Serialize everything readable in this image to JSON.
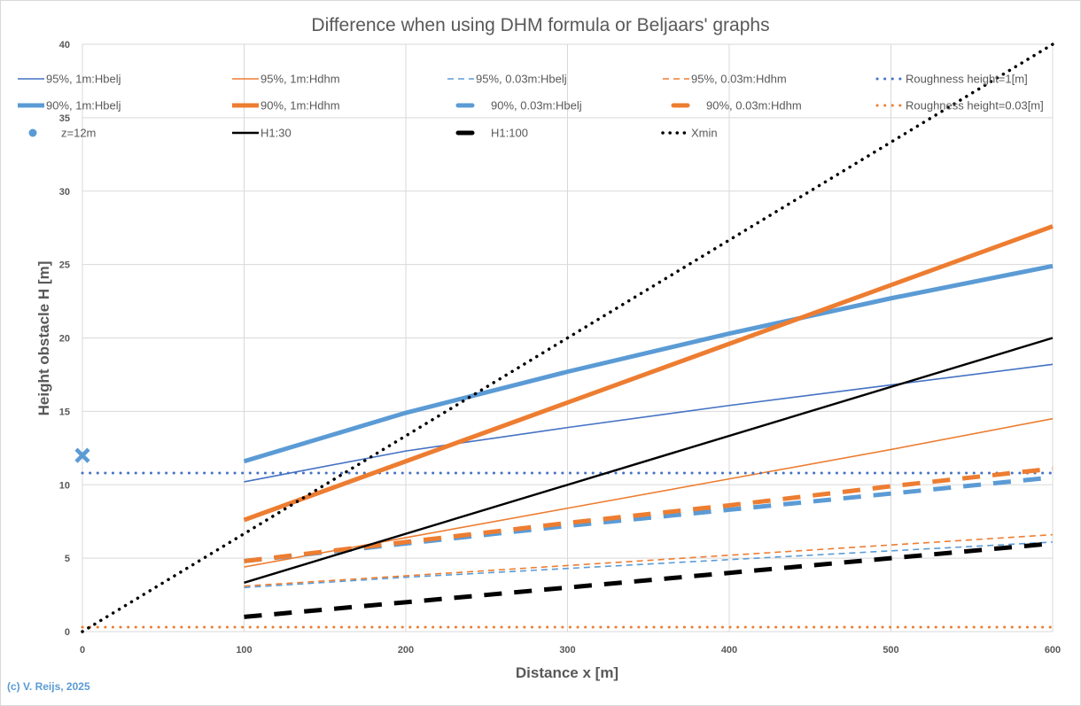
{
  "chart_data": {
    "type": "line",
    "title": "Difference when using DHM formula or Beljaars' graphs",
    "xlabel": "Distance  x [m]",
    "ylabel": "Height obstacle  H [m]",
    "xlim": [
      0,
      600
    ],
    "ylim": [
      0,
      40
    ],
    "x_ticks": [
      0,
      100,
      200,
      300,
      400,
      500,
      600
    ],
    "y_ticks": [
      0,
      5,
      10,
      15,
      20,
      25,
      30,
      35,
      40
    ],
    "grid": true,
    "legend_placement": "top",
    "copyright": "(c) V. Reijs, 2025",
    "series": [
      {
        "name": "95%, 1m:Hbelj",
        "color": "#4472c4",
        "style": "solid-thin",
        "x": [
          100,
          200,
          300,
          400,
          500,
          600
        ],
        "y": [
          10.2,
          12.3,
          13.9,
          15.4,
          16.8,
          18.2
        ]
      },
      {
        "name": "95%, 1m:Hdhm",
        "color": "#ed7d31",
        "style": "solid-thin",
        "x": [
          100,
          200,
          300,
          400,
          500,
          600
        ],
        "y": [
          4.4,
          6.4,
          8.4,
          10.4,
          12.4,
          14.5
        ]
      },
      {
        "name": "95%, 0.03m:Hbelj",
        "color": "#5b9bd5",
        "style": "dash-thin",
        "x": [
          100,
          200,
          300,
          400,
          500,
          600
        ],
        "y": [
          3.0,
          3.7,
          4.3,
          4.9,
          5.5,
          6.1
        ]
      },
      {
        "name": "95%, 0.03m:Hdhm",
        "color": "#ed7d31",
        "style": "dash-thin",
        "x": [
          100,
          200,
          300,
          400,
          500,
          600
        ],
        "y": [
          3.1,
          3.8,
          4.5,
          5.2,
          5.9,
          6.6
        ]
      },
      {
        "name": "Roughness height=1[m]",
        "color": "#4472c4",
        "style": "dot",
        "x": [
          0,
          600
        ],
        "y": [
          10.8,
          10.8
        ]
      },
      {
        "name": "90%, 1m:Hbelj",
        "color": "#5b9bd5",
        "style": "solid-thick",
        "x": [
          100,
          200,
          300,
          400,
          500,
          600
        ],
        "y": [
          11.6,
          14.9,
          17.7,
          20.3,
          22.7,
          24.9
        ]
      },
      {
        "name": "90%, 1m:Hdhm",
        "color": "#ed7d31",
        "style": "solid-thick",
        "x": [
          100,
          200,
          300,
          400,
          500,
          600
        ],
        "y": [
          7.6,
          11.6,
          15.6,
          19.6,
          23.6,
          27.6
        ]
      },
      {
        "name": "90%, 0.03m:Hbelj",
        "color": "#5b9bd5",
        "style": "dash-thick",
        "x": [
          100,
          200,
          300,
          400,
          500,
          600
        ],
        "y": [
          4.8,
          6.0,
          7.2,
          8.3,
          9.4,
          10.5
        ]
      },
      {
        "name": "90%, 0.03m:Hdhm",
        "color": "#ed7d31",
        "style": "dash-thick",
        "x": [
          100,
          200,
          300,
          400,
          500,
          600
        ],
        "y": [
          4.8,
          6.1,
          7.4,
          8.6,
          9.9,
          11.1
        ]
      },
      {
        "name": "Roughness height=0.03[m]",
        "color": "#ed7d31",
        "style": "dot",
        "x": [
          0,
          600
        ],
        "y": [
          0.3,
          0.3
        ]
      },
      {
        "name": "z=12m",
        "color": "#5b9bd5",
        "style": "marker-x",
        "x": [
          0
        ],
        "y": [
          12
        ]
      },
      {
        "name": "H1:30",
        "color": "#000000",
        "style": "solid-mid",
        "x": [
          100,
          600
        ],
        "y": [
          3.33,
          20
        ]
      },
      {
        "name": "H1:100",
        "color": "#000000",
        "style": "dash-thick",
        "x": [
          100,
          200,
          300,
          400,
          500,
          600
        ],
        "y": [
          1,
          2,
          3,
          4,
          5,
          6
        ]
      },
      {
        "name": "Xmin",
        "color": "#000000",
        "style": "dot-black",
        "x": [
          0,
          600
        ],
        "y": [
          0,
          40
        ]
      }
    ]
  }
}
